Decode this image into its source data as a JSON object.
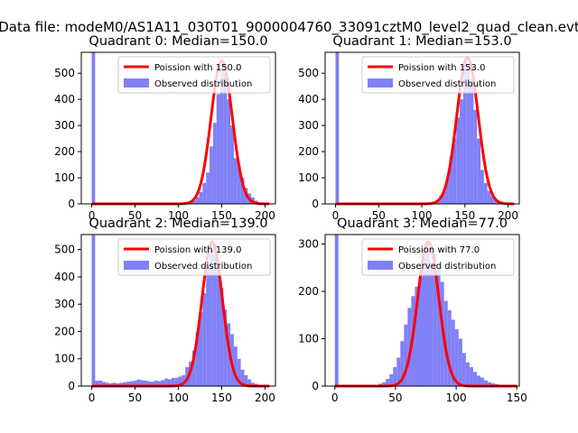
{
  "figure": {
    "suptitle": "Data file: modeM0/AS1A11_030T01_9000004760_33091cztM0_level2_quad_clean.evt"
  },
  "colors": {
    "histogram": "#8080f7",
    "poisson": "#ff0000",
    "axis": "#000000"
  },
  "chart_data": [
    {
      "type": "bar",
      "title": "Quadrant 0: Median=150.0",
      "xlim": [
        -12,
        212
      ],
      "ylim": [
        0,
        580
      ],
      "xticks": [
        0,
        50,
        100,
        150,
        200
      ],
      "yticks": [
        0,
        100,
        200,
        300,
        400,
        500
      ],
      "bin_width": 4,
      "legend": {
        "position": "top-right",
        "entries": [
          "Poission with 150.0",
          "Observed distribution"
        ]
      },
      "hist_bins": [
        [
          0,
          580
        ],
        [
          100,
          2
        ],
        [
          112,
          8
        ],
        [
          116,
          14
        ],
        [
          120,
          26
        ],
        [
          124,
          45
        ],
        [
          128,
          80
        ],
        [
          132,
          120
        ],
        [
          136,
          220
        ],
        [
          140,
          310
        ],
        [
          144,
          420
        ],
        [
          148,
          520
        ],
        [
          152,
          500
        ],
        [
          156,
          400
        ],
        [
          160,
          300
        ],
        [
          164,
          175
        ],
        [
          168,
          145
        ],
        [
          172,
          100
        ],
        [
          176,
          60
        ],
        [
          180,
          40
        ],
        [
          184,
          25
        ],
        [
          188,
          12
        ],
        [
          192,
          5
        ],
        [
          196,
          3
        ],
        [
          200,
          2
        ]
      ],
      "poisson_mean": 150,
      "poisson_scale": 547,
      "poisson_sigma": 12.25,
      "poisson_xrange": [
        0,
        205
      ]
    },
    {
      "type": "bar",
      "title": "Quadrant 1: Median=153.0",
      "xlim": [
        -12,
        213
      ],
      "ylim": [
        0,
        580
      ],
      "xticks": [
        0,
        50,
        100,
        150,
        200
      ],
      "yticks": [
        0,
        100,
        200,
        300,
        400,
        500
      ],
      "bin_width": 4,
      "legend": {
        "position": "top-right",
        "entries": [
          "Poission with 153.0",
          "Observed distribution"
        ]
      },
      "hist_bins": [
        [
          0,
          580
        ],
        [
          104,
          3
        ],
        [
          112,
          8
        ],
        [
          116,
          15
        ],
        [
          120,
          30
        ],
        [
          124,
          50
        ],
        [
          128,
          100
        ],
        [
          132,
          180
        ],
        [
          136,
          250
        ],
        [
          140,
          330
        ],
        [
          144,
          400
        ],
        [
          148,
          540
        ],
        [
          152,
          520
        ],
        [
          156,
          480
        ],
        [
          160,
          360
        ],
        [
          164,
          250
        ],
        [
          168,
          130
        ],
        [
          172,
          80
        ],
        [
          176,
          50
        ],
        [
          180,
          30
        ],
        [
          184,
          15
        ],
        [
          188,
          8
        ],
        [
          192,
          4
        ],
        [
          196,
          2
        ]
      ],
      "poisson_mean": 153,
      "poisson_scale": 560,
      "poisson_sigma": 12.37,
      "poisson_xrange": [
        0,
        207
      ]
    },
    {
      "type": "bar",
      "title": "Quadrant 2: Median=139.0",
      "xlim": [
        -12,
        212
      ],
      "ylim": [
        0,
        555
      ],
      "xticks": [
        0,
        50,
        100,
        150,
        200
      ],
      "yticks": [
        0,
        100,
        200,
        300,
        400,
        500
      ],
      "bin_width": 4,
      "legend": {
        "position": "top-right",
        "entries": [
          "Poission with 139.0",
          "Observed distribution"
        ]
      },
      "hist_bins": [
        [
          0,
          555
        ],
        [
          4,
          20
        ],
        [
          8,
          20
        ],
        [
          12,
          15
        ],
        [
          16,
          12
        ],
        [
          20,
          10
        ],
        [
          24,
          12
        ],
        [
          28,
          10
        ],
        [
          32,
          12
        ],
        [
          36,
          14
        ],
        [
          40,
          16
        ],
        [
          44,
          18
        ],
        [
          48,
          20
        ],
        [
          52,
          24
        ],
        [
          56,
          22
        ],
        [
          60,
          20
        ],
        [
          64,
          18
        ],
        [
          68,
          16
        ],
        [
          72,
          20
        ],
        [
          76,
          18
        ],
        [
          80,
          22
        ],
        [
          84,
          28
        ],
        [
          88,
          25
        ],
        [
          92,
          30
        ],
        [
          96,
          30
        ],
        [
          100,
          35
        ],
        [
          104,
          40
        ],
        [
          108,
          70
        ],
        [
          112,
          90
        ],
        [
          116,
          130
        ],
        [
          120,
          200
        ],
        [
          124,
          270
        ],
        [
          128,
          340
        ],
        [
          132,
          440
        ],
        [
          136,
          500
        ],
        [
          140,
          520
        ],
        [
          144,
          460
        ],
        [
          148,
          360
        ],
        [
          152,
          280
        ],
        [
          156,
          230
        ],
        [
          160,
          190
        ],
        [
          164,
          145
        ],
        [
          168,
          100
        ],
        [
          172,
          60
        ],
        [
          176,
          40
        ],
        [
          180,
          25
        ],
        [
          184,
          12
        ],
        [
          188,
          8
        ],
        [
          192,
          4
        ],
        [
          196,
          2
        ]
      ],
      "poisson_mean": 139,
      "poisson_scale": 527,
      "poisson_sigma": 11.79,
      "poisson_xrange": [
        0,
        205
      ]
    },
    {
      "type": "bar",
      "title": "Quadrant 3: Median=77.0",
      "xlim": [
        -8,
        152
      ],
      "ylim": [
        0,
        320
      ],
      "xticks": [
        0,
        50,
        100,
        150
      ],
      "yticks": [
        0,
        100,
        200,
        300
      ],
      "bin_width": 3,
      "legend": {
        "position": "top-right",
        "entries": [
          "Poission with 77.0",
          "Observed distribution"
        ]
      },
      "hist_bins": [
        [
          0,
          320
        ],
        [
          36,
          5
        ],
        [
          39,
          8
        ],
        [
          42,
          15
        ],
        [
          45,
          25
        ],
        [
          48,
          40
        ],
        [
          51,
          60
        ],
        [
          54,
          95
        ],
        [
          57,
          130
        ],
        [
          60,
          165
        ],
        [
          63,
          190
        ],
        [
          66,
          210
        ],
        [
          69,
          230
        ],
        [
          72,
          270
        ],
        [
          75,
          305
        ],
        [
          78,
          260
        ],
        [
          81,
          280
        ],
        [
          84,
          250
        ],
        [
          87,
          220
        ],
        [
          90,
          180
        ],
        [
          93,
          160
        ],
        [
          96,
          140
        ],
        [
          99,
          120
        ],
        [
          102,
          100
        ],
        [
          105,
          70
        ],
        [
          108,
          50
        ],
        [
          111,
          40
        ],
        [
          114,
          30
        ],
        [
          117,
          22
        ],
        [
          120,
          18
        ],
        [
          123,
          12
        ],
        [
          126,
          8
        ],
        [
          129,
          6
        ],
        [
          132,
          4
        ],
        [
          135,
          2
        ]
      ],
      "poisson_mean": 77,
      "poisson_scale": 305,
      "poisson_sigma": 8.77,
      "poisson_xrange": [
        0,
        150
      ]
    }
  ]
}
